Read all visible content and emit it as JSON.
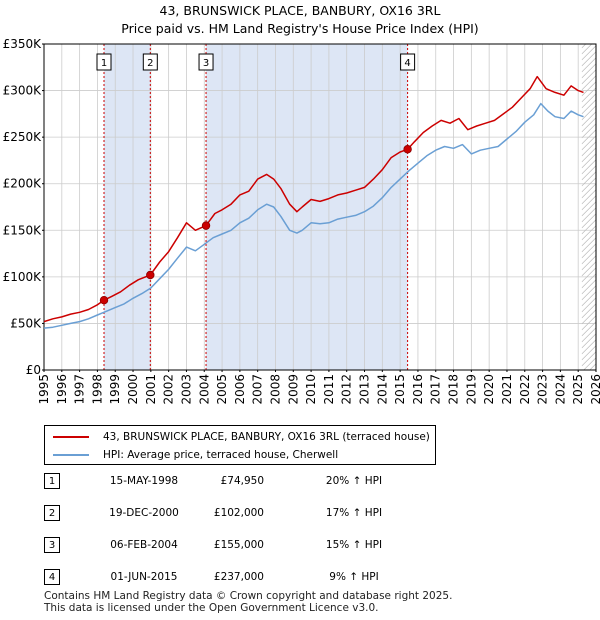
{
  "title": {
    "line1": "43, BRUNSWICK PLACE, BANBURY, OX16 3RL",
    "line2": "Price paid vs. HM Land Registry's House Price Index (HPI)"
  },
  "colors": {
    "property": "#cc0000",
    "hpi": "#6a9fd4",
    "shade": "#dde6f5",
    "grid": "#cccccc",
    "marker_line": "#cc0000"
  },
  "legend": {
    "property_label": "43, BRUNSWICK PLACE, BANBURY, OX16 3RL (terraced house)",
    "hpi_label": "HPI: Average price, terraced house, Cherwell"
  },
  "sales": [
    {
      "num": "1",
      "date": "15-MAY-1998",
      "price": "£74,950",
      "hpi": "20% ↑ HPI"
    },
    {
      "num": "2",
      "date": "19-DEC-2000",
      "price": "£102,000",
      "hpi": "17% ↑ HPI"
    },
    {
      "num": "3",
      "date": "06-FEB-2004",
      "price": "£155,000",
      "hpi": "15% ↑ HPI"
    },
    {
      "num": "4",
      "date": "01-JUN-2015",
      "price": "£237,000",
      "hpi": "9% ↑ HPI"
    }
  ],
  "footer": {
    "line1": "Contains HM Land Registry data © Crown copyright and database right 2025.",
    "line2": "This data is licensed under the Open Government Licence v3.0."
  },
  "chart_data": {
    "type": "line",
    "title": "43, BRUNSWICK PLACE, BANBURY, OX16 3RL — Price paid vs. HM Land Registry's House Price Index (HPI)",
    "xlabel": "",
    "ylabel": "",
    "xlim": [
      1995,
      2026
    ],
    "ylim": [
      0,
      350000
    ],
    "y_ticks": [
      0,
      50000,
      100000,
      150000,
      200000,
      250000,
      300000,
      350000
    ],
    "y_tick_labels": [
      "£0",
      "£50K",
      "£100K",
      "£150K",
      "£200K",
      "£250K",
      "£300K",
      "£350K"
    ],
    "x_ticks": [
      1995,
      1996,
      1997,
      1998,
      1999,
      2000,
      2001,
      2002,
      2003,
      2004,
      2005,
      2006,
      2007,
      2008,
      2009,
      2010,
      2011,
      2012,
      2013,
      2014,
      2015,
      2016,
      2017,
      2018,
      2019,
      2020,
      2021,
      2022,
      2023,
      2024,
      2025,
      2026
    ],
    "x_tick_labels": [
      "1995",
      "1996",
      "1997",
      "1998",
      "1999",
      "2000",
      "2001",
      "2002",
      "2003",
      "2004",
      "2005",
      "2006",
      "2007",
      "2008",
      "2009",
      "2010",
      "2011",
      "2012",
      "2013",
      "2014",
      "2015",
      "2016",
      "2017",
      "2018",
      "2019",
      "2020",
      "2021",
      "2022",
      "2023",
      "2024",
      "2025",
      "2026"
    ],
    "grid": true,
    "shaded_ranges": [
      [
        1998.37,
        2000.97
      ],
      [
        2004.1,
        2015.42
      ]
    ],
    "future_hatch_from": 2025.2,
    "sale_markers": [
      {
        "label": "1",
        "x": 1998.37,
        "y": 74950
      },
      {
        "label": "2",
        "x": 2000.97,
        "y": 102000
      },
      {
        "label": "3",
        "x": 2004.1,
        "y": 155000
      },
      {
        "label": "4",
        "x": 2015.42,
        "y": 237000
      }
    ],
    "series": [
      {
        "name": "43, BRUNSWICK PLACE, BANBURY, OX16 3RL (terraced house)",
        "x": [
          1995.0,
          1995.5,
          1996.0,
          1996.5,
          1997.0,
          1997.5,
          1998.0,
          1998.37,
          1998.8,
          1999.3,
          1999.8,
          2000.3,
          2000.97,
          2001.5,
          2002.0,
          2002.5,
          2003.0,
          2003.5,
          2004.1,
          2004.6,
          2005.0,
          2005.5,
          2006.0,
          2006.5,
          2007.0,
          2007.5,
          2007.9,
          2008.3,
          2008.8,
          2009.2,
          2009.5,
          2010.0,
          2010.5,
          2011.0,
          2011.5,
          2012.0,
          2012.5,
          2013.0,
          2013.5,
          2014.0,
          2014.5,
          2015.0,
          2015.42,
          2015.8,
          2016.3,
          2016.8,
          2017.3,
          2017.8,
          2018.3,
          2018.8,
          2019.3,
          2019.8,
          2020.3,
          2020.8,
          2021.3,
          2021.8,
          2022.3,
          2022.7,
          2023.2,
          2023.7,
          2024.2,
          2024.6,
          2025.0,
          2025.3
        ],
        "values": [
          52000,
          55000,
          57000,
          60000,
          62000,
          65000,
          70000,
          74950,
          79000,
          84000,
          91000,
          97000,
          102000,
          116000,
          127000,
          142000,
          158000,
          150000,
          155000,
          168000,
          172000,
          178000,
          188000,
          192000,
          205000,
          210000,
          205000,
          195000,
          178000,
          170000,
          175000,
          183000,
          181000,
          184000,
          188000,
          190000,
          193000,
          196000,
          205000,
          215000,
          228000,
          234000,
          237000,
          245000,
          255000,
          262000,
          268000,
          265000,
          270000,
          258000,
          262000,
          265000,
          268000,
          275000,
          282000,
          292000,
          302000,
          315000,
          302000,
          298000,
          295000,
          305000,
          300000,
          298000
        ]
      },
      {
        "name": "HPI: Average price, terraced house, Cherwell",
        "x": [
          1995.0,
          1995.5,
          1996.0,
          1996.5,
          1997.0,
          1997.5,
          1998.0,
          1998.5,
          1999.0,
          1999.5,
          2000.0,
          2000.5,
          2001.0,
          2001.5,
          2002.0,
          2002.5,
          2003.0,
          2003.5,
          2004.0,
          2004.5,
          2005.0,
          2005.5,
          2006.0,
          2006.5,
          2007.0,
          2007.5,
          2007.9,
          2008.3,
          2008.8,
          2009.2,
          2009.5,
          2010.0,
          2010.5,
          2011.0,
          2011.5,
          2012.0,
          2012.5,
          2013.0,
          2013.5,
          2014.0,
          2014.5,
          2015.0,
          2015.5,
          2016.0,
          2016.5,
          2017.0,
          2017.5,
          2018.0,
          2018.5,
          2019.0,
          2019.5,
          2020.0,
          2020.5,
          2021.0,
          2021.5,
          2022.0,
          2022.5,
          2022.9,
          2023.3,
          2023.7,
          2024.2,
          2024.6,
          2025.0,
          2025.3
        ],
        "values": [
          45000,
          46000,
          48000,
          50000,
          52000,
          55000,
          59000,
          63000,
          67000,
          71000,
          77000,
          82000,
          88000,
          98000,
          108000,
          120000,
          132000,
          128000,
          135000,
          142000,
          146000,
          150000,
          158000,
          163000,
          172000,
          178000,
          175000,
          165000,
          150000,
          147000,
          150000,
          158000,
          157000,
          158000,
          162000,
          164000,
          166000,
          170000,
          176000,
          185000,
          196000,
          205000,
          214000,
          222000,
          230000,
          236000,
          240000,
          238000,
          242000,
          232000,
          236000,
          238000,
          240000,
          248000,
          256000,
          266000,
          274000,
          286000,
          278000,
          272000,
          270000,
          278000,
          274000,
          272000
        ]
      }
    ]
  }
}
